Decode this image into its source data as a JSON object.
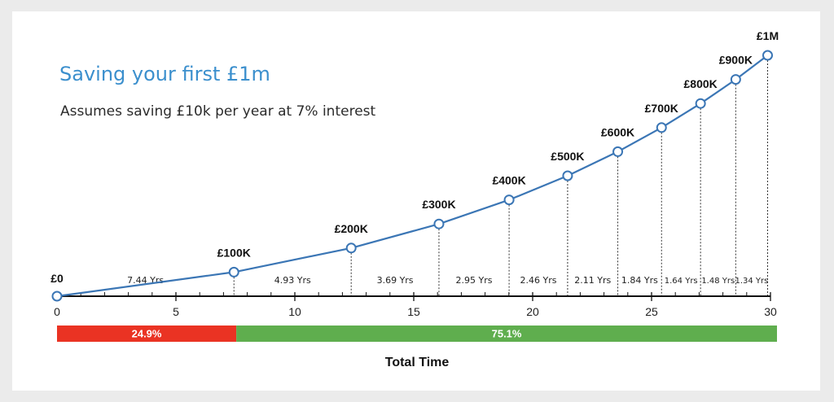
{
  "chart_data": {
    "type": "line",
    "title": "Saving your first £1m",
    "subtitle": "Assumes saving £10k per year at 7% interest",
    "xlim": [
      0,
      30
    ],
    "x_ticks": [
      0,
      5,
      10,
      15,
      20,
      25,
      30
    ],
    "series": [
      {
        "points": [
          {
            "x": 0,
            "y": 0,
            "label": "£0"
          },
          {
            "x": 7.44,
            "y": 100000,
            "label": "£100K"
          },
          {
            "x": 12.37,
            "y": 200000,
            "label": "£200K"
          },
          {
            "x": 16.06,
            "y": 300000,
            "label": "£300K"
          },
          {
            "x": 19.01,
            "y": 400000,
            "label": "£400K"
          },
          {
            "x": 21.47,
            "y": 500000,
            "label": "£500K"
          },
          {
            "x": 23.58,
            "y": 600000,
            "label": "£600K"
          },
          {
            "x": 25.42,
            "y": 700000,
            "label": "£700K"
          },
          {
            "x": 27.06,
            "y": 800000,
            "label": "£800K"
          },
          {
            "x": 28.54,
            "y": 900000,
            "label": "£900K"
          },
          {
            "x": 29.88,
            "y": 1000000,
            "label": "£1M"
          }
        ]
      }
    ],
    "interval_labels": [
      "7.44 Yrs",
      "4.93 Yrs",
      "3.69 Yrs",
      "2.95 Yrs",
      "2.46 Yrs",
      "2.11 Yrs",
      "1.84 Yrs",
      "1.64 Yrs",
      "1.48 Yrs",
      "1.34 Yrs"
    ],
    "time_split": {
      "title": "Total Time",
      "segments": [
        {
          "label": "24.9%",
          "value": 24.9,
          "color": "#ea3323"
        },
        {
          "label": "75.1%",
          "value": 75.1,
          "color": "#5fae4e"
        }
      ]
    },
    "colors": {
      "line": "#3b76b5",
      "marker_fill": "#ffffff",
      "axis": "#111111"
    }
  }
}
